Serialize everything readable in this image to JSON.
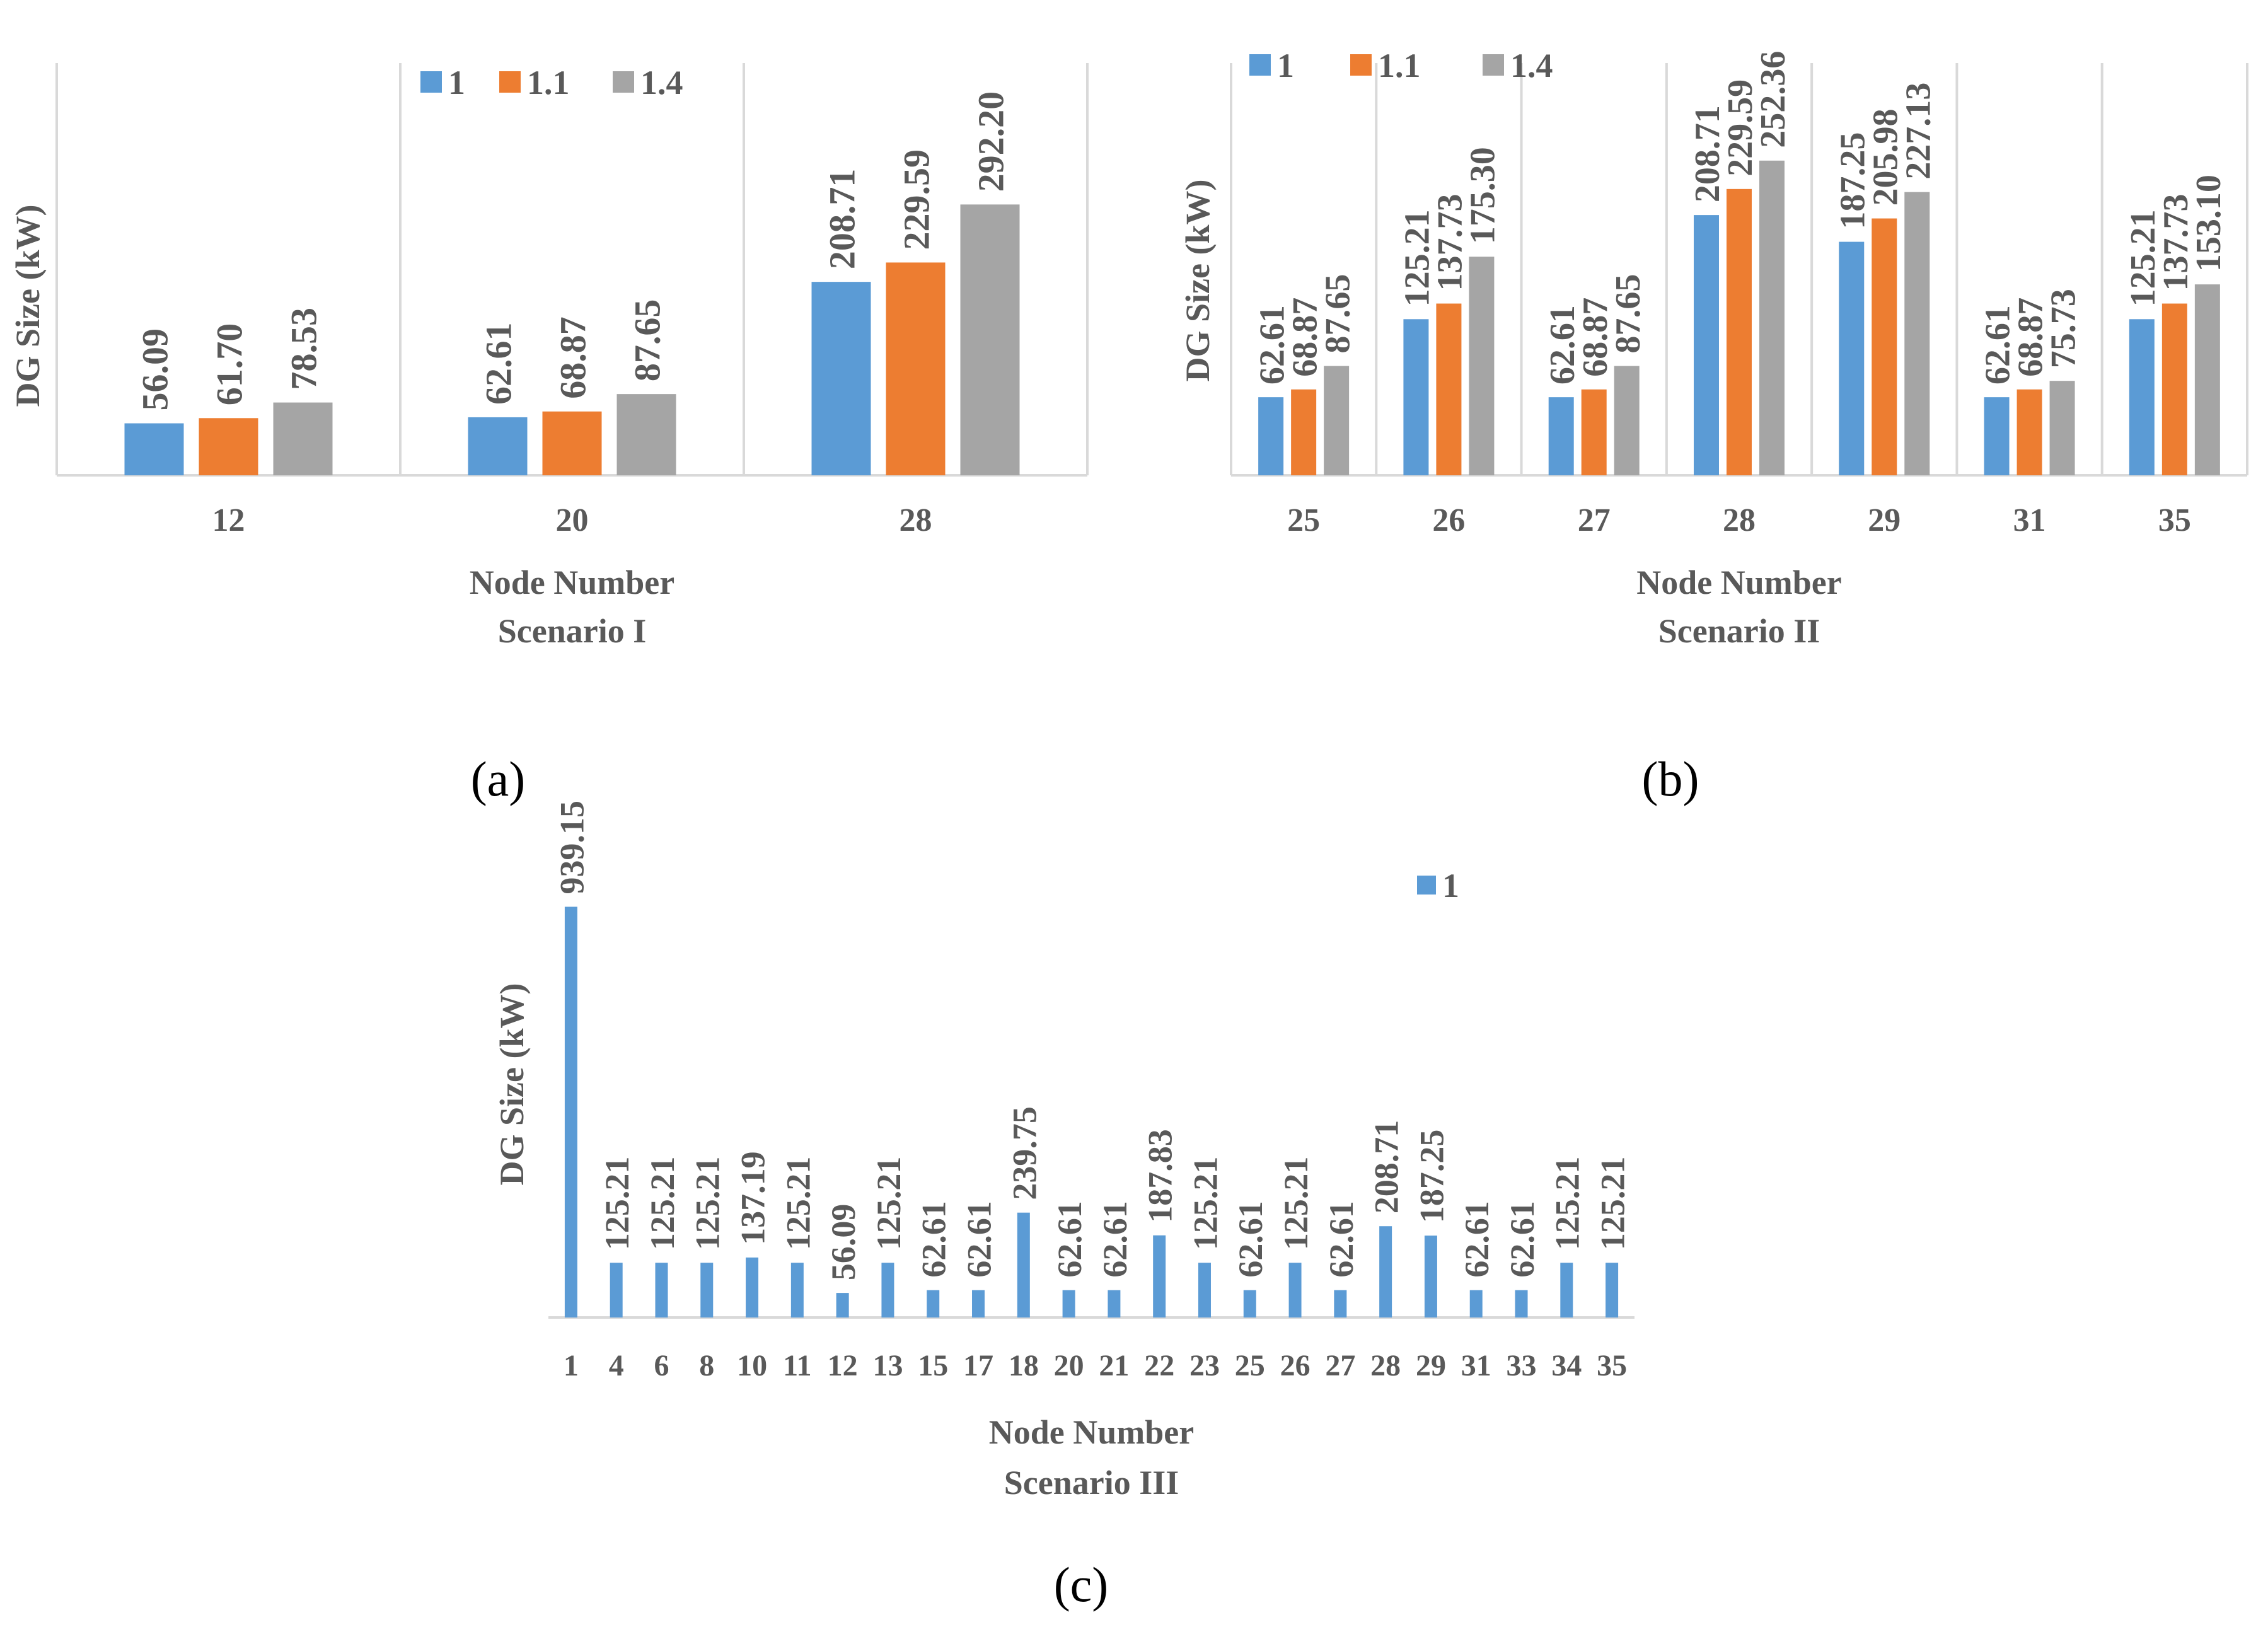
{
  "colors": {
    "series_1": "#5B9BD5",
    "series_1_1": "#ED7D31",
    "series_1_4": "#A5A5A5",
    "axis": "#D9D9D9",
    "text": "#595959",
    "caption": "#000000"
  },
  "chart_data": [
    {
      "type": "bar",
      "caption": "(a)",
      "xlabel": "Node Number",
      "subtitle": "Scenario I",
      "ylabel": "DG Size (kW)",
      "categories": [
        "12",
        "20",
        "28"
      ],
      "series": [
        {
          "name": "1",
          "values": [
            56.09,
            62.61,
            208.71
          ],
          "labels": [
            "56.09",
            "62.61",
            "208.71"
          ]
        },
        {
          "name": "1.1",
          "values": [
            61.7,
            68.87,
            229.59
          ],
          "labels": [
            "61.70",
            "68.87",
            "229.59"
          ]
        },
        {
          "name": "1.4",
          "values": [
            78.53,
            87.65,
            292.2
          ],
          "labels": [
            "78.53",
            "87.65",
            "292.20"
          ]
        }
      ],
      "ylim": [
        0,
        370
      ],
      "legend": "top-center",
      "grid": false
    },
    {
      "type": "bar",
      "caption": "(b)",
      "xlabel": "Node Number",
      "subtitle": "Scenario II",
      "ylabel": "DG Size (kW)",
      "categories": [
        "25",
        "26",
        "27",
        "28",
        "29",
        "31",
        "35"
      ],
      "series": [
        {
          "name": "1",
          "values": [
            62.61,
            125.21,
            62.61,
            208.71,
            187.25,
            62.61,
            125.21
          ],
          "labels": [
            "62.61",
            "125.21",
            "62.61",
            "208.71",
            "187.25",
            "62.61",
            "125.21"
          ]
        },
        {
          "name": "1.1",
          "values": [
            68.87,
            137.73,
            68.87,
            229.59,
            205.98,
            68.87,
            137.73
          ],
          "labels": [
            "68.87",
            "137.73",
            "68.87",
            "229.59",
            "205.98",
            "68.87",
            "137.73"
          ]
        },
        {
          "name": "1.4",
          "values": [
            87.65,
            175.3,
            87.65,
            252.36,
            227.13,
            75.73,
            153.1
          ],
          "labels": [
            "87.65",
            "175.30",
            "87.65",
            "252.36",
            "227.13",
            "75.73",
            "153.10"
          ]
        }
      ],
      "ylim": [
        0,
        275
      ],
      "legend": "top-left",
      "grid": false
    },
    {
      "type": "bar",
      "caption": "(c)",
      "xlabel": "Node Number",
      "subtitle": "Scenario III",
      "ylabel": "DG Size (kW)",
      "categories": [
        "1",
        "4",
        "6",
        "8",
        "10",
        "11",
        "12",
        "13",
        "15",
        "17",
        "18",
        "20",
        "21",
        "22",
        "23",
        "25",
        "26",
        "27",
        "28",
        "29",
        "31",
        "33",
        "34",
        "35"
      ],
      "series": [
        {
          "name": "1",
          "values": [
            939.15,
            125.21,
            125.21,
            125.21,
            137.19,
            125.21,
            56.09,
            125.21,
            62.61,
            62.61,
            239.75,
            62.61,
            62.61,
            187.83,
            125.21,
            62.61,
            125.21,
            62.61,
            208.71,
            187.25,
            62.61,
            62.61,
            125.21,
            125.21
          ],
          "labels": [
            "939.15",
            "125.21",
            "125.21",
            "125.21",
            "137.19",
            "125.21",
            "56.09",
            "125.21",
            "62.61",
            "62.61",
            "239.75",
            "62.61",
            "62.61",
            "187.83",
            "125.21",
            "62.61",
            "125.21",
            "62.61",
            "208.71",
            "187.25",
            "62.61",
            "62.61",
            "125.21",
            "125.21"
          ]
        }
      ],
      "ylim": [
        0,
        960
      ],
      "legend": "top-right",
      "grid": false
    }
  ]
}
